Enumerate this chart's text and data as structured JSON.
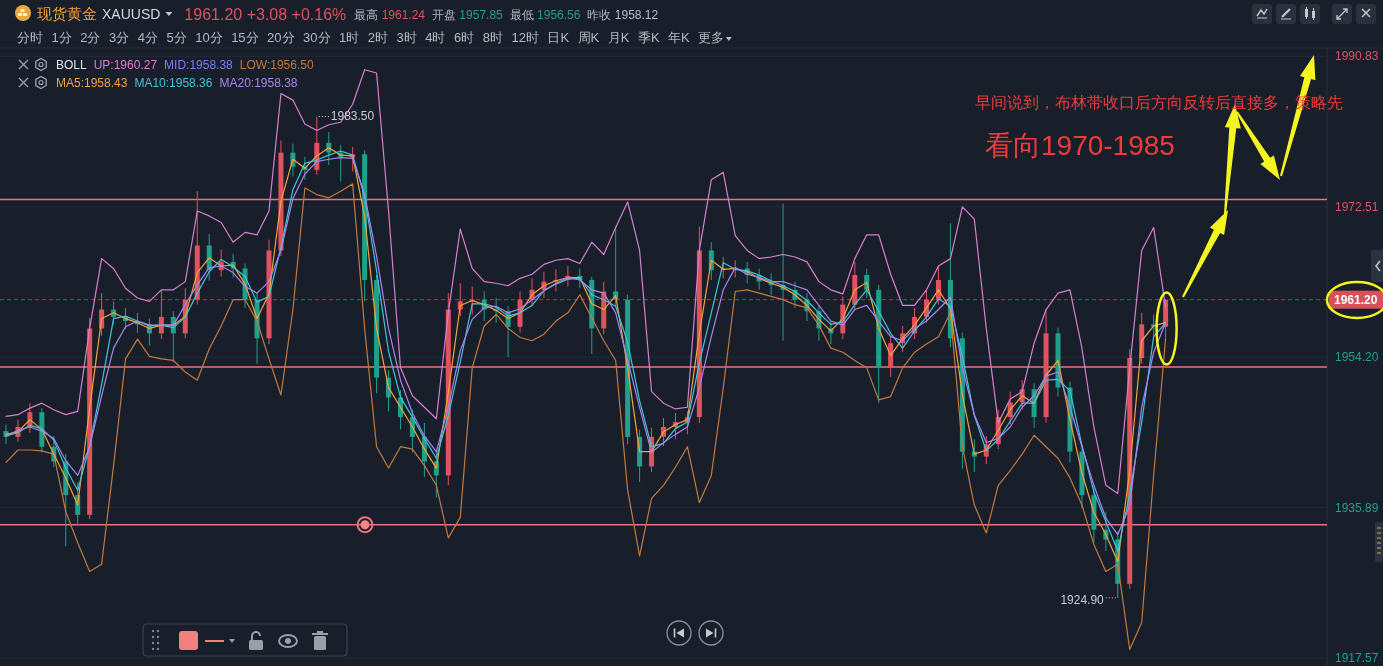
{
  "chart_data": {
    "type": "candlestick",
    "title": "现货黄金",
    "subtitle": "XAUUSD",
    "legend_title": "BOLL",
    "legend": "top left",
    "grid": "y",
    "tick_labels": "y",
    "annotations": [
      "1961.20 +3.08 +0.16%",
      "最高 1961.24",
      "开盘 1957.85",
      "最低 1956.56",
      "昨收 1958.12",
      "分时",
      "1分",
      "2分",
      "3分",
      "4分",
      "5分",
      "10分",
      "15分",
      "20分",
      "30分",
      "1时",
      "2时",
      "3时",
      "4时",
      "6时",
      "8时",
      "12时",
      "日K",
      "周K",
      "月K",
      "季K",
      "年K",
      "更多",
      "早间说到，布林带收口后方向反转后直接多，策略先",
      "看向1970-1985",
      "1983.50",
      "1924.90"
    ],
    "ylim": [
      1916.6,
      1991.6
    ],
    "yticks": [
      1990.83,
      1972.51,
      {
        "value": 1954.2,
        "label": "1954.20"
      },
      1935.89,
      1917.57
    ],
    "ref_lines": [
      {
        "axis": "y",
        "value": 1973.4,
        "color": "#e8737b"
      },
      {
        "axis": "y",
        "value": 1953.0,
        "color": "#e8737b"
      },
      {
        "axis": "y",
        "value": 1933.8,
        "color": "#e8737b"
      },
      {
        "axis": "y",
        "value": 1961.2,
        "label": "1961.20",
        "color": "#d9505b",
        "line_style": "dashed"
      }
    ],
    "categories": [
      null,
      null,
      null,
      null,
      null,
      null,
      null,
      null,
      null,
      null,
      null,
      null,
      null,
      null,
      null,
      null,
      null,
      null,
      null,
      null,
      null,
      null,
      null,
      null,
      null,
      null,
      null,
      null,
      null,
      null,
      null,
      null,
      null,
      null,
      null,
      null,
      null,
      null,
      null,
      null,
      null,
      null,
      null,
      null,
      null,
      null,
      null,
      null,
      null,
      null,
      null,
      null,
      null,
      null,
      null,
      null,
      null,
      null,
      null,
      null,
      null,
      null,
      null,
      null,
      null,
      null,
      null,
      null,
      null,
      null,
      null,
      null,
      null,
      null,
      null,
      null,
      null,
      null,
      null,
      null,
      null,
      null,
      null,
      null,
      null,
      null,
      null,
      null,
      null,
      null,
      null,
      null,
      null,
      null,
      null,
      null,
      null,
      null,
      null,
      null,
      null,
      null,
      null,
      null,
      null,
      null,
      null,
      null,
      null,
      null,
      null
    ],
    "ohlc": [
      [
        1945.2,
        1946.0,
        1943.6,
        1944.5
      ],
      [
        1944.5,
        1946.6,
        1943.9,
        1945.7
      ],
      [
        1945.7,
        1948.6,
        1945.0,
        1947.5
      ],
      [
        1947.5,
        1948.0,
        1942.6,
        1943.3
      ],
      [
        1943.3,
        1944.6,
        1940.8,
        1941.5
      ],
      [
        1941.5,
        1942.4,
        1931.2,
        1937.4
      ],
      [
        1937.4,
        1939.0,
        1933.8,
        1935.0
      ],
      [
        1935.0,
        1959.0,
        1934.5,
        1957.7
      ],
      [
        1957.7,
        1962.0,
        1956.8,
        1960.0
      ],
      [
        1960.0,
        1961.0,
        1958.2,
        1959.1
      ],
      [
        1959.1,
        1960.2,
        1957.6,
        1958.6
      ],
      [
        1958.6,
        1959.6,
        1957.2,
        1958.2
      ],
      [
        1958.2,
        1958.9,
        1955.6,
        1957.1
      ],
      [
        1957.1,
        1962.4,
        1956.4,
        1959.1
      ],
      [
        1959.1,
        1959.8,
        1953.6,
        1957.1
      ],
      [
        1957.1,
        1962.6,
        1956.5,
        1961.2
      ],
      [
        1961.2,
        1974.4,
        1960.6,
        1967.8
      ],
      [
        1967.8,
        1969.2,
        1963.5,
        1964.8
      ],
      [
        1964.8,
        1967.3,
        1964.0,
        1965.8
      ],
      [
        1965.8,
        1966.8,
        1963.9,
        1965.0
      ],
      [
        1965.0,
        1965.6,
        1960.2,
        1961.2
      ],
      [
        1961.2,
        1962.0,
        1953.4,
        1956.5
      ],
      [
        1956.5,
        1968.5,
        1955.8,
        1967.2
      ],
      [
        1967.2,
        1980.6,
        1966.5,
        1979.1
      ],
      [
        1979.1,
        1980.2,
        1976.2,
        1977.4
      ],
      [
        1977.4,
        1978.6,
        1975.8,
        1977.0
      ],
      [
        1977.0,
        1983.5,
        1976.4,
        1980.3
      ],
      [
        1980.3,
        1981.6,
        1977.6,
        1979.1
      ],
      [
        1979.1,
        1980.0,
        1975.6,
        1978.5
      ],
      [
        1978.5,
        1979.8,
        1976.8,
        1978.9
      ],
      [
        1978.9,
        1979.4,
        1961.0,
        1963.6
      ],
      [
        1963.6,
        1964.2,
        1949.8,
        1951.7
      ],
      [
        1951.7,
        1952.6,
        1947.6,
        1949.3
      ],
      [
        1949.3,
        1950.2,
        1945.4,
        1946.9
      ],
      [
        1946.9,
        1947.8,
        1942.6,
        1944.5
      ],
      [
        1944.5,
        1946.2,
        1939.6,
        1941.5
      ],
      [
        1941.5,
        1942.8,
        1937.1,
        1939.8
      ],
      [
        1939.8,
        1962.0,
        1938.6,
        1960.0
      ],
      [
        1960.0,
        1963.2,
        1959.2,
        1961.0
      ],
      [
        1961.0,
        1962.8,
        1959.4,
        1961.2
      ],
      [
        1961.2,
        1962.2,
        1958.6,
        1960.0
      ],
      [
        1960.0,
        1961.4,
        1958.4,
        1959.8
      ],
      [
        1959.8,
        1960.4,
        1954.2,
        1957.9
      ],
      [
        1957.9,
        1962.2,
        1957.2,
        1961.2
      ],
      [
        1961.2,
        1963.8,
        1960.4,
        1962.4
      ],
      [
        1962.4,
        1964.6,
        1961.4,
        1963.4
      ],
      [
        1963.4,
        1964.9,
        1962.2,
        1963.6
      ],
      [
        1963.6,
        1965.3,
        1962.8,
        1964.1
      ],
      [
        1964.1,
        1965.0,
        1962.6,
        1963.6
      ],
      [
        1963.6,
        1964.0,
        1954.6,
        1957.7
      ],
      [
        1957.7,
        1963.4,
        1957.0,
        1962.2
      ],
      [
        1962.2,
        1970.1,
        1960.4,
        1961.2
      ],
      [
        1961.2,
        1961.8,
        1943.6,
        1944.5
      ],
      [
        1944.5,
        1945.4,
        1939.0,
        1940.9
      ],
      [
        1940.9,
        1945.6,
        1940.2,
        1944.5
      ],
      [
        1944.5,
        1946.8,
        1943.4,
        1945.7
      ],
      [
        1945.7,
        1947.4,
        1944.2,
        1946.3
      ],
      [
        1946.3,
        1947.6,
        1944.8,
        1946.9
      ],
      [
        1946.9,
        1970.1,
        1946.2,
        1967.2
      ],
      [
        1967.2,
        1968.2,
        1963.6,
        1964.8
      ],
      [
        1964.8,
        1966.4,
        1963.8,
        1965.0
      ],
      [
        1965.0,
        1966.0,
        1963.9,
        1965.0
      ],
      [
        1965.0,
        1965.8,
        1963.2,
        1964.2
      ],
      [
        1964.2,
        1965.0,
        1962.4,
        1963.4
      ],
      [
        1963.4,
        1964.4,
        1961.8,
        1963.0
      ],
      [
        1963.0,
        1972.9,
        1956.2,
        1962.4
      ],
      [
        1962.4,
        1963.4,
        1960.2,
        1961.2
      ],
      [
        1961.2,
        1962.0,
        1958.6,
        1959.8
      ],
      [
        1959.8,
        1960.4,
        1956.2,
        1957.7
      ],
      [
        1957.7,
        1958.6,
        1955.8,
        1957.1
      ],
      [
        1957.1,
        1961.6,
        1956.4,
        1960.6
      ],
      [
        1960.6,
        1965.8,
        1960.0,
        1964.2
      ],
      [
        1964.2,
        1965.0,
        1961.4,
        1962.4
      ],
      [
        1962.4,
        1963.0,
        1948.6,
        1952.9
      ],
      [
        1952.9,
        1956.8,
        1951.8,
        1955.9
      ],
      [
        1955.9,
        1958.0,
        1954.8,
        1957.1
      ],
      [
        1957.1,
        1960.2,
        1956.4,
        1959.1
      ],
      [
        1959.1,
        1962.4,
        1958.4,
        1961.2
      ],
      [
        1961.2,
        1965.2,
        1960.6,
        1963.6
      ],
      [
        1963.6,
        1970.5,
        1955.4,
        1956.5
      ],
      [
        1956.5,
        1957.2,
        1940.6,
        1942.7
      ],
      [
        1942.7,
        1944.2,
        1940.2,
        1942.1
      ],
      [
        1942.1,
        1944.6,
        1941.2,
        1943.6
      ],
      [
        1943.6,
        1947.8,
        1943.0,
        1946.9
      ],
      [
        1946.9,
        1950.0,
        1946.0,
        1948.7
      ],
      [
        1948.7,
        1951.4,
        1947.8,
        1950.3
      ],
      [
        1950.3,
        1951.0,
        1945.6,
        1946.9
      ],
      [
        1946.9,
        1960.0,
        1946.2,
        1957.1
      ],
      [
        1957.1,
        1957.8,
        1949.4,
        1950.5
      ],
      [
        1950.5,
        1951.2,
        1941.4,
        1942.7
      ],
      [
        1942.7,
        1943.6,
        1935.8,
        1937.4
      ],
      [
        1937.4,
        1938.6,
        1931.6,
        1933.2
      ],
      [
        1933.2,
        1935.4,
        1930.6,
        1932.0
      ],
      [
        1932.0,
        1933.0,
        1924.9,
        1926.6
      ],
      [
        1926.6,
        1955.2,
        1926.0,
        1954.1
      ],
      [
        1954.1,
        1959.6,
        1953.4,
        1958.2
      ],
      [
        1958.2,
        1959.4,
        1956.8,
        1957.9
      ],
      [
        1957.9,
        1961.2,
        1956.6,
        1961.2
      ],
      null,
      null,
      null,
      null,
      null,
      null,
      null,
      null,
      null,
      null,
      null,
      null,
      null
    ],
    "colors": [
      "#1fa08b",
      "#e0525d",
      "#e0525d",
      "#1fa08b",
      "#1fa08b",
      "#1fa08b",
      "#1fa08b",
      "#e0525d",
      "#e0525d",
      "#1fa08b",
      "#1fa08b",
      "#1fa08b",
      "#1fa08b",
      "#e0525d",
      "#1fa08b",
      "#e0525d",
      "#e0525d",
      "#1fa08b",
      "#e0525d",
      "#1fa08b",
      "#1fa08b",
      "#1fa08b",
      "#e0525d",
      "#e0525d",
      "#1fa08b",
      "#1fa08b",
      "#e0525d",
      "#1fa08b",
      "#1fa08b",
      "#e0525d",
      "#1fa08b",
      "#1fa08b",
      "#1fa08b",
      "#1fa08b",
      "#1fa08b",
      "#1fa08b",
      "#1fa08b",
      "#e0525d",
      "#e0525d",
      "#e0525d",
      "#1fa08b",
      "#1fa08b",
      "#1fa08b",
      "#e0525d",
      "#e0525d",
      "#e0525d",
      "#e0525d",
      "#e0525d",
      "#1fa08b",
      "#1fa08b",
      "#e0525d",
      "#1fa08b",
      "#1fa08b",
      "#1fa08b",
      "#e0525d",
      "#e0525d",
      "#e0525d",
      "#e0525d",
      "#e0525d",
      "#1fa08b",
      "#e0525d",
      "#e0525d",
      "#1fa08b",
      "#1fa08b",
      "#1fa08b",
      "#1fa08b",
      "#1fa08b",
      "#1fa08b",
      "#1fa08b",
      "#1fa08b",
      "#e0525d",
      "#e0525d",
      "#1fa08b",
      "#1fa08b",
      "#e0525d",
      "#e0525d",
      "#e0525d",
      "#e0525d",
      "#e0525d",
      "#1fa08b",
      "#1fa08b",
      "#1fa08b",
      "#e0525d",
      "#e0525d",
      "#e0525d",
      "#e0525d",
      "#1fa08b",
      "#e0525d",
      "#1fa08b",
      "#1fa08b",
      "#1fa08b",
      "#1fa08b",
      "#1fa08b",
      "#1fa08b",
      "#e0525d",
      "#e0525d",
      "#1fa08b",
      "#e0525d",
      null,
      null,
      null,
      null,
      null,
      null,
      null,
      null,
      null,
      null,
      null,
      null,
      null
    ],
    "series": [
      {
        "name": "UP:1960.27",
        "type": "line",
        "color": "#d77fd0",
        "values": [
          1947.0,
          1947.2,
          1948.0,
          1948.6,
          1947.8,
          1947.2,
          1947.6,
          1957.7,
          1966.2,
          1965.0,
          1962.6,
          1961.4,
          1961.0,
          1962.4,
          1962.4,
          1963.4,
          1972.0,
          1971.4,
          1970.6,
          1968.2,
          1969.4,
          1969.1,
          1972.0,
          1986.3,
          1985.5,
          1982.6,
          1981.8,
          1982.5,
          1982.8,
          1985.0,
          1989.2,
          1988.8,
          1972.0,
          1952.9,
          1949.5,
          1948.1,
          1946.7,
          1959.6,
          1969.8,
          1965.0,
          1963.4,
          1963.2,
          1962.9,
          1963.8,
          1964.3,
          1965.5,
          1966.0,
          1966.2,
          1965.6,
          1968.2,
          1966.7,
          1970.0,
          1973.1,
          1967.2,
          1950.0,
          1948.6,
          1947.9,
          1948.1,
          1967.2,
          1975.8,
          1976.7,
          1969.0,
          1967.2,
          1966.2,
          1966.4,
          1966.7,
          1966.4,
          1965.8,
          1963.4,
          1962.4,
          1961.9,
          1966.2,
          1969.1,
          1969.1,
          1964.3,
          1960.5,
          1960.5,
          1962.4,
          1965.3,
          1966.2,
          1972.5,
          1971.0,
          1957.7,
          1946.2,
          1949.1,
          1950.0,
          1955.9,
          1960.0,
          1962.0,
          1962.4,
          1955.3,
          1945.7,
          1938.6,
          1937.6,
          1952.9,
          1967.2,
          1970.0,
          1960.27,
          null,
          null,
          null,
          null,
          null,
          null,
          null,
          null,
          null,
          null,
          null,
          null,
          null
        ]
      },
      {
        "name": "MID:1958.38",
        "type": "line",
        "color": "#7b7ff2",
        "values": [
          null,
          null,
          null,
          null,
          null,
          null,
          null,
          null,
          null,
          null,
          null,
          null,
          null,
          null,
          null,
          null,
          null,
          null,
          null,
          null,
          null,
          null,
          null,
          null,
          null,
          null,
          null,
          null,
          null,
          null,
          null,
          null,
          null,
          null,
          null,
          null,
          null,
          null,
          null,
          null,
          null,
          null,
          null,
          null,
          null,
          null,
          null,
          null,
          null,
          null,
          null,
          null,
          null,
          null,
          null,
          null,
          null,
          null,
          null,
          null,
          null,
          null,
          null,
          null,
          null,
          null,
          null,
          null,
          null,
          null,
          null,
          null,
          null,
          null,
          null,
          null,
          null,
          null,
          null,
          null,
          null,
          null,
          null,
          null,
          null,
          null,
          null,
          null,
          null,
          null,
          null,
          null,
          null,
          null,
          null,
          null,
          null,
          null,
          null,
          null,
          null,
          null,
          null,
          null,
          null,
          null,
          null,
          null,
          null,
          null,
          null
        ]
      },
      {
        "name": "LOW:1956.50",
        "type": "line",
        "color": "#c27a3e",
        "values": [
          1941.4,
          1942.9,
          1942.9,
          1942.8,
          1942.4,
          1935.4,
          1931.6,
          1928.1,
          1929.0,
          1941.0,
          1954.0,
          1956.4,
          1954.3,
          1954.0,
          1953.8,
          1952.4,
          1951.4,
          1955.2,
          1958.0,
          1961.2,
          1961.2,
          1958.6,
          1954.0,
          1949.6,
          1960.0,
          1974.8,
          1974.0,
          1973.6,
          1974.4,
          1975.3,
          1957.7,
          1943.3,
          1940.7,
          1943.3,
          1943.0,
          1941.0,
          1938.6,
          1932.2,
          1934.7,
          1952.9,
          1958.0,
          1959.4,
          1957.7,
          1956.6,
          1956.2,
          1957.0,
          1958.6,
          1959.6,
          1961.8,
          1959.0,
          1956.2,
          1953.8,
          1938.0,
          1930.0,
          1937.0,
          1938.6,
          1940.8,
          1943.3,
          1936.5,
          1939.8,
          1950.5,
          1962.2,
          1962.4,
          1962.0,
          1961.6,
          1961.2,
          1960.6,
          1960.2,
          1958.1,
          1955.3,
          1954.8,
          1953.8,
          1952.9,
          1949.0,
          1949.4,
          1952.9,
          1954.8,
          1955.8,
          1956.7,
          1959.6,
          1943.3,
          1936.2,
          1932.8,
          1938.6,
          1940.4,
          1942.4,
          1944.7,
          1943.3,
          1941.9,
          1939.5,
          1936.2,
          1931.4,
          1928.1,
          1929.0,
          1918.6,
          1921.9,
          1939.8,
          1956.5,
          null,
          null,
          null,
          null,
          null,
          null,
          null,
          null,
          null,
          null,
          null,
          null,
          null
        ]
      },
      {
        "name": "MA5:1958.43",
        "type": "line",
        "color": "#f2a33a",
        "values": [
          1944.8,
          1945.1,
          1946.6,
          1945.4,
          1942.4,
          1939.5,
          1936.2,
          1948.0,
          1958.9,
          1959.6,
          1958.9,
          1958.4,
          1957.7,
          1958.1,
          1958.1,
          1959.2,
          1964.5,
          1966.3,
          1965.3,
          1965.4,
          1963.1,
          1958.9,
          1961.9,
          1973.2,
          1978.3,
          1977.2,
          1978.7,
          1979.7,
          1978.8,
          1978.7,
          1971.3,
          1957.7,
          1950.5,
          1948.1,
          1945.7,
          1943.0,
          1940.7,
          1949.9,
          1960.5,
          1961.1,
          1960.6,
          1959.9,
          1958.9,
          1959.6,
          1961.8,
          1962.9,
          1963.5,
          1963.9,
          1963.9,
          1960.7,
          1960.0,
          1961.7,
          1952.9,
          1942.7,
          1942.7,
          1945.1,
          1946.0,
          1946.6,
          1957.1,
          1966.0,
          1964.9,
          1965.0,
          1964.6,
          1963.8,
          1963.2,
          1962.7,
          1961.8,
          1960.5,
          1958.8,
          1957.4,
          1958.9,
          1962.4,
          1963.3,
          1957.7,
          1954.4,
          1956.5,
          1958.1,
          1960.2,
          1962.4,
          1960.1,
          1949.6,
          1942.4,
          1942.9,
          1945.3,
          1947.8,
          1949.5,
          1948.6,
          1952.0,
          1953.8,
          1946.6,
          1940.1,
          1935.3,
          1932.6,
          1929.3,
          1940.4,
          1956.2,
          1958.0,
          1958.43,
          null,
          null,
          null,
          null,
          null,
          null,
          null,
          null,
          null,
          null,
          null,
          null,
          null
        ]
      },
      {
        "name": "MA10:1958.36",
        "type": "line",
        "color": "#3ec6d6",
        "values": [
          1944.6,
          1945.0,
          1945.9,
          1945.5,
          1944.1,
          1940.7,
          1938.0,
          1943.4,
          1950.9,
          1958.9,
          1959.2,
          1958.6,
          1958.0,
          1958.1,
          1957.8,
          1959.1,
          1962.0,
          1964.6,
          1966.1,
          1965.2,
          1964.0,
          1960.9,
          1961.6,
          1967.6,
          1974.6,
          1977.8,
          1978.2,
          1978.8,
          1979.3,
          1978.8,
          1973.7,
          1964.7,
          1954.9,
          1949.3,
          1946.9,
          1944.3,
          1941.9,
          1947.1,
          1953.6,
          1960.7,
          1960.7,
          1960.3,
          1959.2,
          1959.6,
          1960.5,
          1962.3,
          1963.1,
          1963.7,
          1963.8,
          1961.8,
          1961.2,
          1960.4,
          1956.0,
          1948.9,
          1943.3,
          1943.7,
          1945.5,
          1946.3,
          1953.5,
          1959.6,
          1965.7,
          1964.9,
          1964.7,
          1964.2,
          1963.5,
          1962.9,
          1962.2,
          1961.1,
          1959.6,
          1958.2,
          1958.5,
          1960.6,
          1962.4,
          1959.8,
          1957.1,
          1955.3,
          1957.4,
          1959.1,
          1961.3,
          1960.4,
          1954.3,
          1947.1,
          1942.8,
          1944.2,
          1946.4,
          1948.6,
          1948.6,
          1951.4,
          1951.5,
          1950.1,
          1943.5,
          1937.8,
          1934.2,
          1930.6,
          1937.6,
          1946.3,
          1956.7,
          1958.36,
          null,
          null,
          null,
          null,
          null,
          null,
          null,
          null,
          null,
          null,
          null,
          null,
          null
        ]
      },
      {
        "name": "MA20:1958.38",
        "type": "line",
        "color": "#a884f0",
        "values": [
          1944.6,
          1945.3,
          1945.7,
          1945.2,
          1944.3,
          1941.6,
          1939.8,
          1943.3,
          1949.5,
          1955.3,
          1957.9,
          1958.6,
          1958.1,
          1958.1,
          1958.1,
          1960.6,
          1963.0,
          1965.1,
          1965.3,
          1964.5,
          1962.8,
          1962.0,
          1963.4,
          1967.2,
          1973.5,
          1976.5,
          1978.0,
          1978.3,
          1978.5,
          1978.4,
          1974.0,
          1966.5,
          1957.7,
          1951.4,
          1947.4,
          1944.6,
          1942.7,
          1948.1,
          1955.0,
          1958.8,
          1960.2,
          1960.4,
          1959.6,
          1960.1,
          1961.2,
          1962.3,
          1963.2,
          1963.9,
          1963.6,
          1962.4,
          1962.0,
          1959.6,
          1953.8,
          1948.1,
          1942.6,
          1943.8,
          1944.8,
          1945.7,
          1950.5,
          1956.7,
          1962.4,
          1965.1,
          1964.3,
          1963.9,
          1963.4,
          1963.4,
          1962.9,
          1962.4,
          1960.5,
          1958.6,
          1958.1,
          1960.0,
          1960.5,
          1958.6,
          1956.7,
          1956.2,
          1957.7,
          1958.6,
          1960.0,
          1961.5,
          1952.9,
          1947.2,
          1943.8,
          1944.3,
          1945.7,
          1948.1,
          1949.5,
          1951.9,
          1952.4,
          1948.1,
          1943.3,
          1938.6,
          1934.6,
          1932.6,
          1936.1,
          1948.1,
          1954.8,
          1958.38,
          null,
          null,
          null,
          null,
          null,
          null,
          null,
          null,
          null,
          null,
          null,
          null,
          null
        ]
      }
    ]
  }
}
